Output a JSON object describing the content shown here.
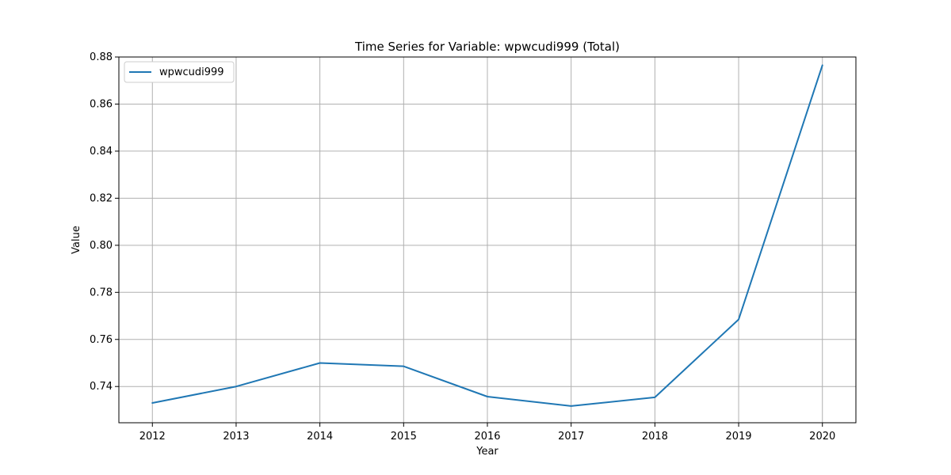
{
  "chart_data": {
    "type": "line",
    "title": "Time Series for Variable: wpwcudi999 (Total)",
    "xlabel": "Year",
    "ylabel": "Value",
    "x": [
      2012,
      2013,
      2014,
      2015,
      2016,
      2017,
      2018,
      2019,
      2020
    ],
    "series": [
      {
        "name": "wpwcudi999",
        "color": "#1f77b4",
        "values": [
          0.733,
          0.74,
          0.75,
          0.7486,
          0.7357,
          0.7317,
          0.7354,
          0.7685,
          0.8765
        ]
      }
    ],
    "xlim": [
      2011.6,
      2020.4
    ],
    "ylim": [
      0.7246,
      0.88
    ],
    "xticks": [
      2012,
      2013,
      2014,
      2015,
      2016,
      2017,
      2018,
      2019,
      2020
    ],
    "yticks": [
      0.74,
      0.76,
      0.78,
      0.8,
      0.82,
      0.84,
      0.86,
      0.88
    ],
    "ytick_labels": [
      "0.74",
      "0.76",
      "0.78",
      "0.80",
      "0.82",
      "0.84",
      "0.86",
      "0.88"
    ],
    "grid": true,
    "legend_position": "upper-left"
  }
}
